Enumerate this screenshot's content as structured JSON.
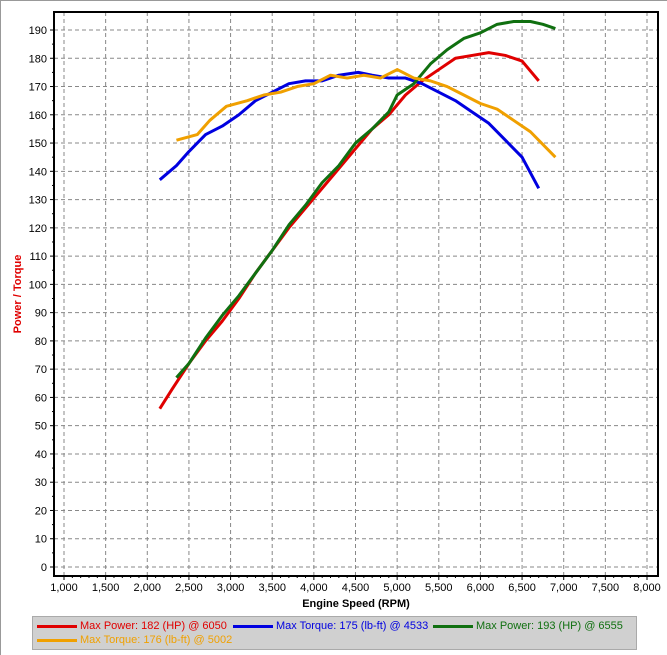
{
  "chart_data": {
    "type": "line",
    "xlabel": "Engine Speed (RPM)",
    "ylabel": "Power / Torque",
    "xlim": [
      1000,
      8000
    ],
    "ylim": [
      0,
      195
    ],
    "xticks": [
      1000,
      1500,
      2000,
      2500,
      3000,
      3500,
      4000,
      4500,
      5000,
      5500,
      6000,
      6500,
      7000,
      7500,
      8000
    ],
    "xtick_labels": [
      "1,000",
      "1,500",
      "2,000",
      "2,500",
      "3,000",
      "3,500",
      "4,000",
      "4,500",
      "5,000",
      "5,500",
      "6,000",
      "6,500",
      "7,000",
      "7,500",
      "8,000"
    ],
    "yticks": [
      0,
      10,
      20,
      30,
      40,
      50,
      60,
      70,
      80,
      90,
      100,
      110,
      120,
      130,
      140,
      150,
      160,
      170,
      180,
      190
    ],
    "grid": true,
    "legend_position": "bottom",
    "series": [
      {
        "name": "Max Power: 182 (HP) @ 6050",
        "color": "#e00000",
        "points": [
          [
            2150,
            56
          ],
          [
            2300,
            63
          ],
          [
            2500,
            72
          ],
          [
            2700,
            80
          ],
          [
            2900,
            87
          ],
          [
            3100,
            95
          ],
          [
            3300,
            104
          ],
          [
            3500,
            112
          ],
          [
            3700,
            120
          ],
          [
            3900,
            127
          ],
          [
            4100,
            134
          ],
          [
            4300,
            141
          ],
          [
            4500,
            148
          ],
          [
            4700,
            155
          ],
          [
            4900,
            160
          ],
          [
            5100,
            167
          ],
          [
            5300,
            172
          ],
          [
            5500,
            176
          ],
          [
            5700,
            180
          ],
          [
            5900,
            181
          ],
          [
            6100,
            182
          ],
          [
            6300,
            181
          ],
          [
            6500,
            179
          ],
          [
            6700,
            172
          ]
        ]
      },
      {
        "name": "Max Torque: 175 (lb-ft) @ 4533",
        "color": "#0000e0",
        "points": [
          [
            2150,
            137
          ],
          [
            2350,
            142
          ],
          [
            2500,
            147
          ],
          [
            2700,
            153
          ],
          [
            2900,
            156
          ],
          [
            3100,
            160
          ],
          [
            3300,
            165
          ],
          [
            3500,
            168
          ],
          [
            3700,
            171
          ],
          [
            3900,
            172
          ],
          [
            4100,
            172
          ],
          [
            4300,
            174
          ],
          [
            4533,
            175
          ],
          [
            4700,
            174
          ],
          [
            4900,
            173
          ],
          [
            5100,
            173
          ],
          [
            5300,
            171
          ],
          [
            5500,
            168
          ],
          [
            5700,
            165
          ],
          [
            5900,
            161
          ],
          [
            6100,
            157
          ],
          [
            6300,
            151
          ],
          [
            6500,
            145
          ],
          [
            6700,
            134
          ]
        ]
      },
      {
        "name": "Max Power: 193 (HP) @ 6555",
        "color": "#107010",
        "points": [
          [
            2350,
            67
          ],
          [
            2500,
            72
          ],
          [
            2700,
            81
          ],
          [
            2900,
            89
          ],
          [
            3100,
            96
          ],
          [
            3300,
            104
          ],
          [
            3500,
            112
          ],
          [
            3700,
            121
          ],
          [
            3900,
            128
          ],
          [
            4100,
            136
          ],
          [
            4300,
            142
          ],
          [
            4500,
            150
          ],
          [
            4700,
            155
          ],
          [
            4900,
            161
          ],
          [
            5000,
            167
          ],
          [
            5200,
            171
          ],
          [
            5400,
            178
          ],
          [
            5600,
            183
          ],
          [
            5800,
            187
          ],
          [
            6000,
            189
          ],
          [
            6200,
            192
          ],
          [
            6400,
            193
          ],
          [
            6600,
            193
          ],
          [
            6750,
            192
          ],
          [
            6900,
            190.5
          ]
        ]
      },
      {
        "name": "Max Torque: 176 (lb-ft) @ 5002",
        "color": "#f0a000",
        "points": [
          [
            2350,
            151
          ],
          [
            2600,
            153
          ],
          [
            2750,
            158
          ],
          [
            2950,
            163
          ],
          [
            3200,
            165
          ],
          [
            3400,
            167
          ],
          [
            3600,
            168
          ],
          [
            3800,
            170
          ],
          [
            4000,
            171
          ],
          [
            4200,
            174
          ],
          [
            4400,
            173
          ],
          [
            4600,
            174
          ],
          [
            4800,
            173
          ],
          [
            5002,
            176
          ],
          [
            5200,
            173
          ],
          [
            5400,
            172
          ],
          [
            5600,
            170
          ],
          [
            5800,
            167
          ],
          [
            6000,
            164
          ],
          [
            6200,
            162
          ],
          [
            6400,
            158
          ],
          [
            6600,
            154
          ],
          [
            6900,
            145
          ]
        ]
      }
    ]
  }
}
